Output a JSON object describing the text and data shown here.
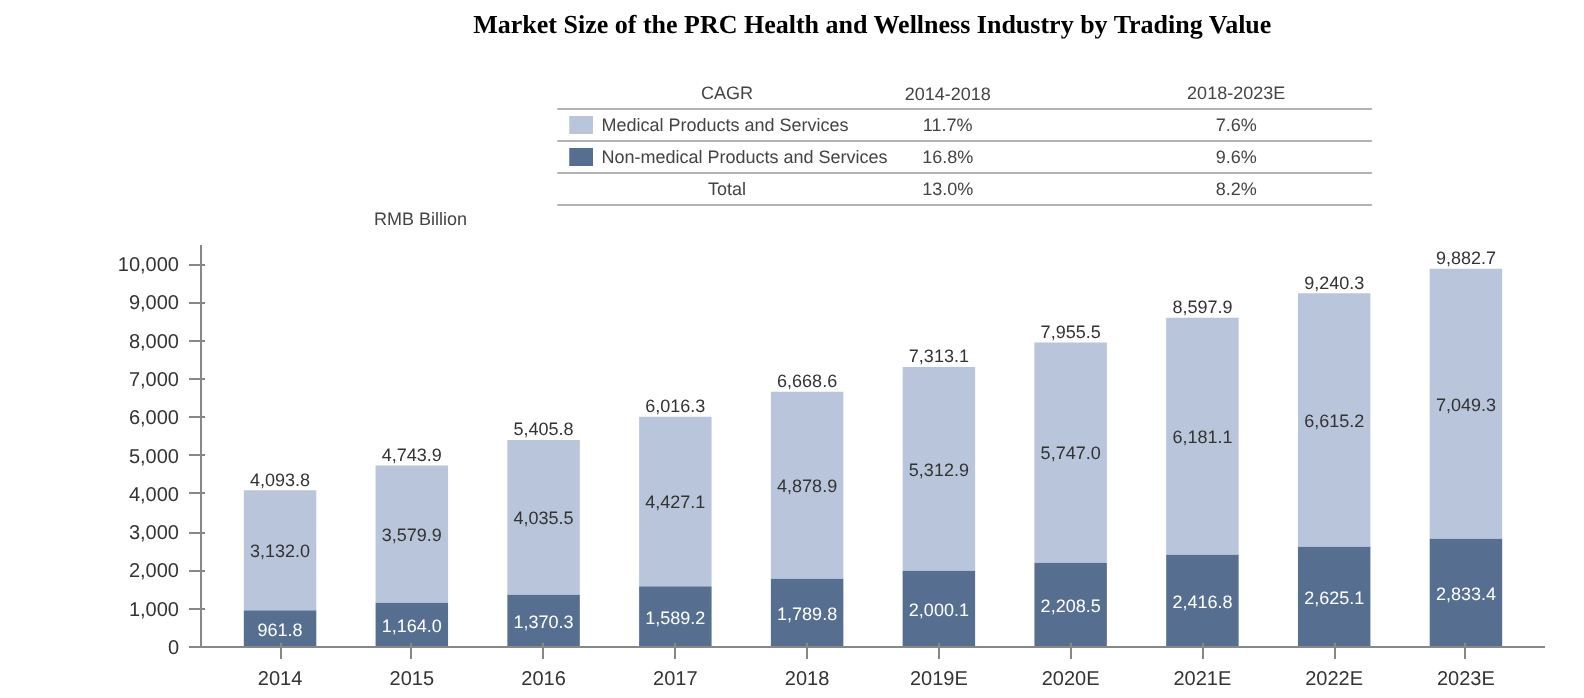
{
  "chart_data": {
    "type": "bar",
    "title": "Market Size of the PRC Health and Wellness Industry by Trading Value",
    "ylabel": "RMB Billion",
    "categories": [
      "2014",
      "2015",
      "2016",
      "2017",
      "2018",
      "2019E",
      "2020E",
      "2021E",
      "2022E",
      "2023E"
    ],
    "stacked": true,
    "legend": "top",
    "series": [
      {
        "name": "Non-medical Products and Services",
        "color": "#566f91",
        "values": [
          961.8,
          1164.0,
          1370.3,
          1589.2,
          1789.8,
          2000.1,
          2208.5,
          2416.8,
          2625.1,
          2833.4
        ],
        "value_labels": [
          "961.8",
          "1,164.0",
          "1,370.3",
          "1,589.2",
          "1,789.8",
          "2,000.1",
          "2,208.5",
          "2,416.8",
          "2,625.1",
          "2,833.4"
        ]
      },
      {
        "name": "Medical Products and Services",
        "color": "#b8c5da",
        "values": [
          3132.0,
          3579.9,
          4035.5,
          4427.1,
          4878.9,
          5312.9,
          5747.0,
          6181.1,
          6615.2,
          7049.3
        ],
        "value_labels": [
          "3,132.0",
          "3,579.9",
          "4,035.5",
          "4,427.1",
          "4,878.9",
          "5,312.9",
          "5,747.0",
          "6,181.1",
          "6,615.2",
          "7,049.3"
        ]
      }
    ],
    "totals": [
      "4,093.8",
      "4,743.9",
      "5,405.8",
      "6,016.3",
      "6,668.6",
      "7,313.1",
      "7,955.5",
      "8,597.9",
      "9,240.3",
      "9,882.7"
    ],
    "ylim": [
      0,
      10500
    ],
    "yticks": [
      0,
      {
        "value": 1000,
        "label": "1,000"
      },
      {
        "value": 2000,
        "label": "2,000"
      },
      {
        "value": 3000,
        "label": "3,000"
      },
      {
        "value": 4000,
        "label": "4,000"
      },
      {
        "value": 5000,
        "label": "5,000"
      },
      {
        "value": 6000,
        "label": "6,000"
      },
      {
        "value": 7000,
        "label": "7,000"
      },
      {
        "value": 8000,
        "label": "8,000"
      },
      {
        "value": 9000,
        "label": "9,000"
      },
      {
        "value": 10000,
        "label": "10,000"
      }
    ],
    "grid": false,
    "annotations": [
      "CAGR",
      "2014-2018",
      "2018-2023E",
      "11.7%",
      "7.6%",
      "16.8%",
      "9.6%",
      "Total",
      "13.0%",
      "8.2%"
    ]
  }
}
